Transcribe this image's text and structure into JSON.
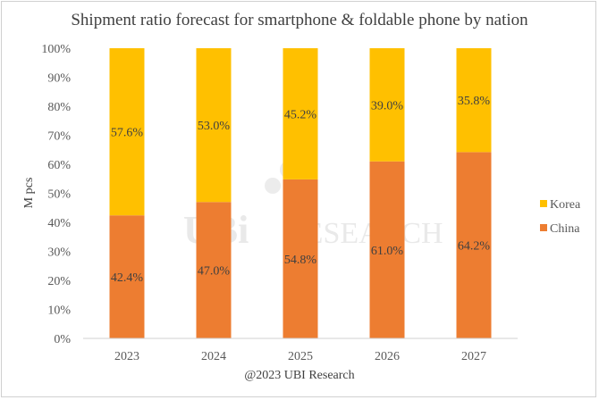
{
  "chart_data": {
    "type": "bar",
    "stacked": true,
    "title": "Shipment ratio forecast for smartphone & foldable phone by nation",
    "xlabel": "",
    "ylabel": "M pcs",
    "ylim": [
      0,
      100
    ],
    "yticks": [
      "0%",
      "10%",
      "20%",
      "30%",
      "40%",
      "50%",
      "60%",
      "70%",
      "80%",
      "90%",
      "100%"
    ],
    "categories": [
      "2023",
      "2024",
      "2025",
      "2026",
      "2027"
    ],
    "series": [
      {
        "name": "China",
        "color": "#ED7D31",
        "values": [
          42.4,
          47.0,
          54.8,
          61.0,
          64.2
        ],
        "labels": [
          "42.4%",
          "47.0%",
          "54.8%",
          "61.0%",
          "64.2%"
        ]
      },
      {
        "name": "Korea",
        "color": "#FFC000",
        "values": [
          57.6,
          53.0,
          45.2,
          39.0,
          35.8
        ],
        "labels": [
          "57.6%",
          "53.0%",
          "45.2%",
          "39.0%",
          "35.8%"
        ]
      }
    ],
    "legend": {
      "placement": "right",
      "order": [
        "Korea",
        "China"
      ]
    },
    "grid": false,
    "source": "@2023 UBI Research",
    "watermark": "UBI RESEARCH"
  }
}
